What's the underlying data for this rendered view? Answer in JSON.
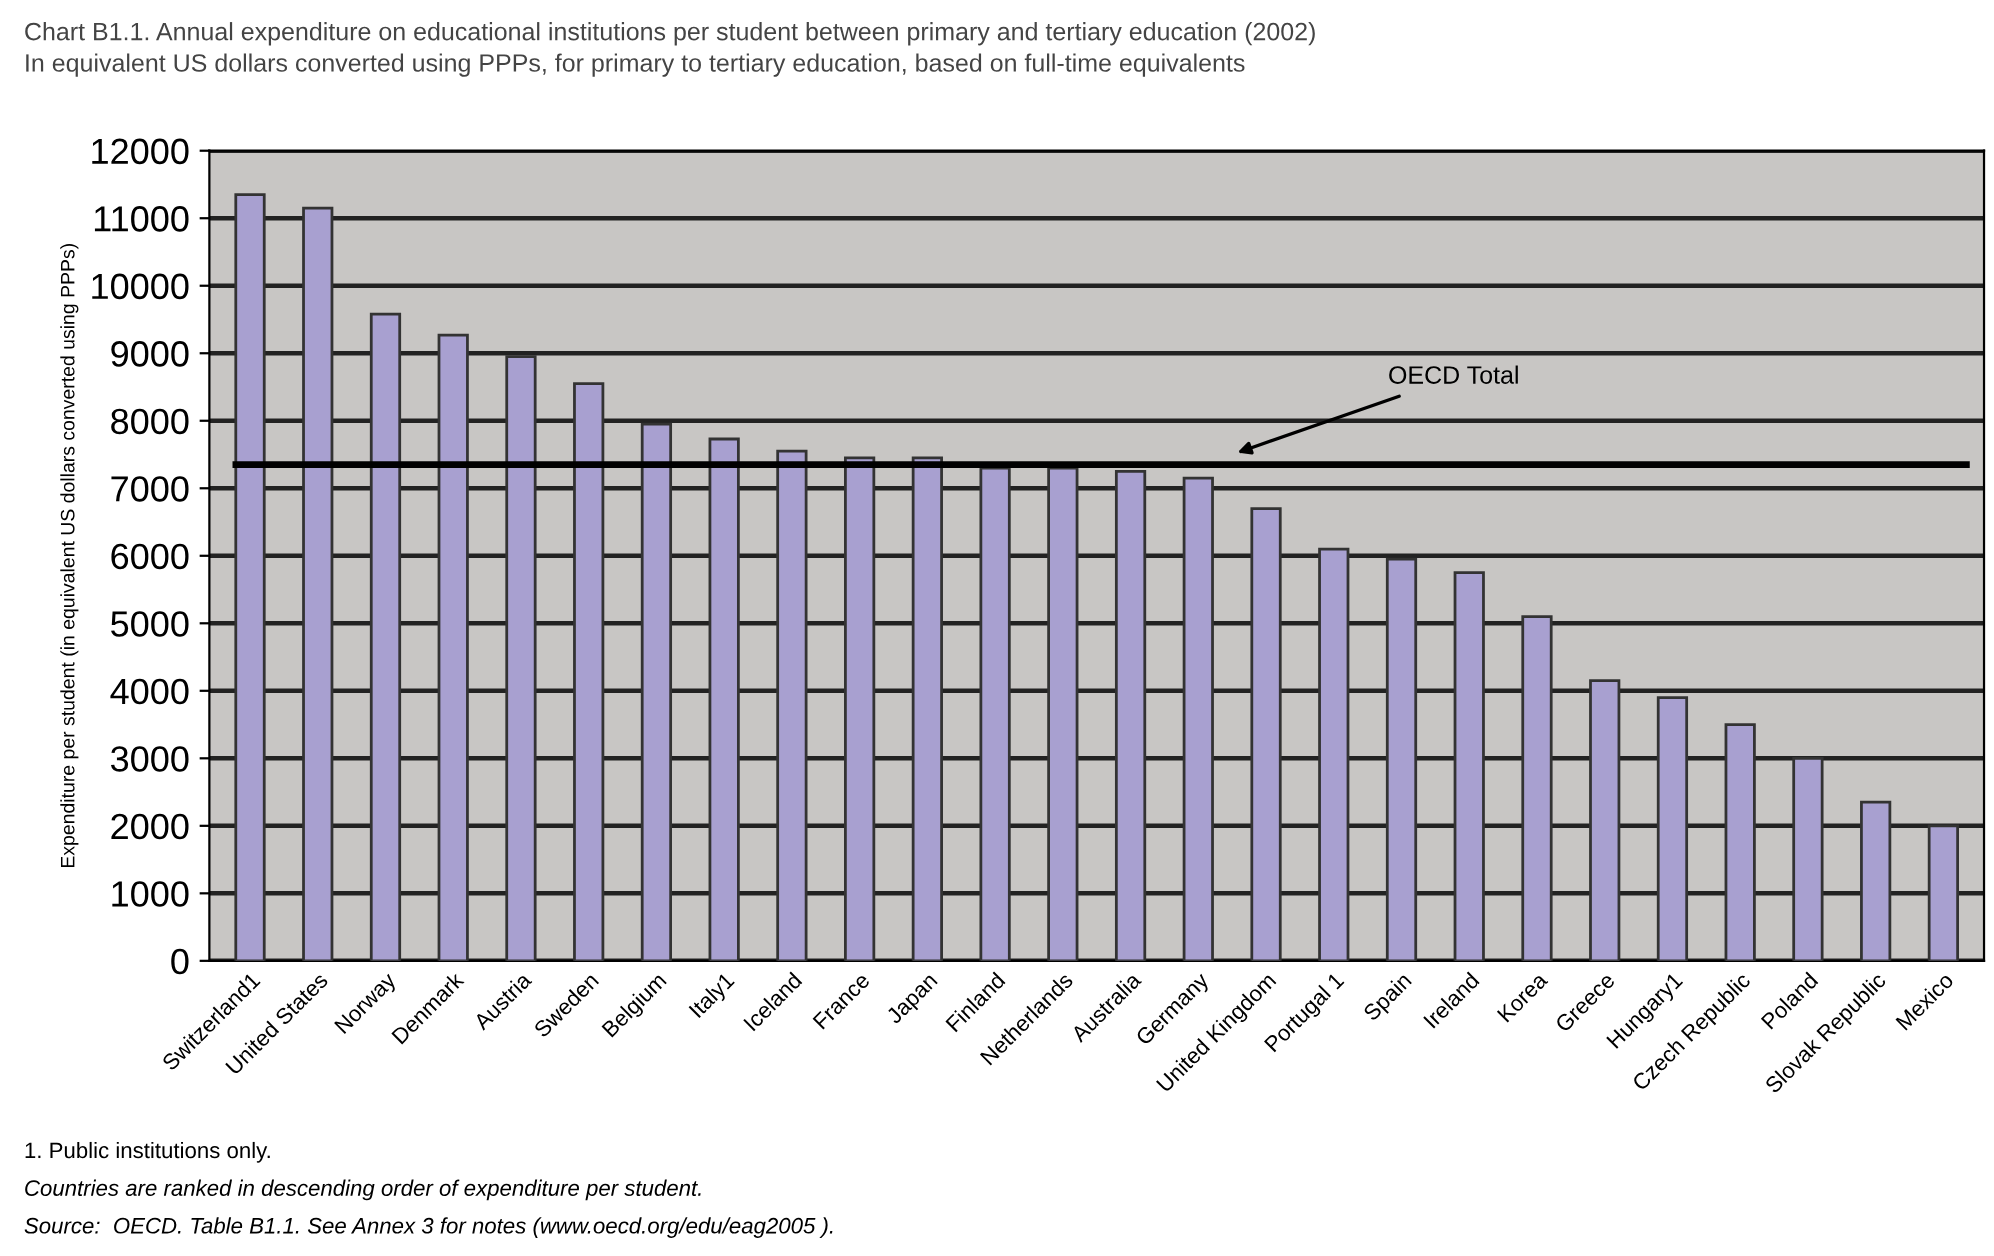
{
  "chart_data": {
    "type": "bar",
    "title": "Chart B1.1. Annual expenditure on educational institutions per student between primary and tertiary education (2002)",
    "subtitle": "In equivalent US dollars converted using PPPs, for primary to tertiary education, based on full-time equivalents",
    "ylabel": "Expenditure per student (in equivalent US dollars converted using PPPs)",
    "categories": [
      "Switzerland1",
      "United States",
      "Norway",
      "Denmark",
      "Austria",
      "Sweden",
      "Belgium",
      "Italy1",
      "Iceland",
      "France",
      "Japan",
      "Finland",
      "Netherlands",
      "Australia",
      "Germany",
      "United Kingdom",
      "Portugal 1",
      "Spain",
      "Ireland",
      "Korea",
      "Greece",
      "Hungary1",
      "Czech Republic",
      "Poland",
      "Slovak Republic",
      "Mexico"
    ],
    "values": [
      11350,
      11150,
      9580,
      9270,
      8950,
      8550,
      7950,
      7730,
      7550,
      7450,
      7450,
      7300,
      7300,
      7250,
      7150,
      6700,
      6100,
      5950,
      5750,
      5100,
      4150,
      3900,
      3500,
      3000,
      2350,
      2000
    ],
    "color": "#a8a0d0",
    "ylim": [
      0,
      12000
    ],
    "yticks": [
      0,
      1000,
      2000,
      3000,
      4000,
      5000,
      6000,
      7000,
      8000,
      9000,
      10000,
      11000,
      12000
    ],
    "grid": "y",
    "ref_lines": [
      {
        "axis": "y",
        "value": 7350,
        "label": "OECD Total",
        "color": "#000000"
      }
    ],
    "annotations": [
      "1. Public institutions only.",
      "Countries are ranked in descending order of expenditure per student.",
      "Source:  OECD. Table B1.1. See Annex 3 for notes (www.oecd.org/edu/eag2005 )."
    ]
  }
}
